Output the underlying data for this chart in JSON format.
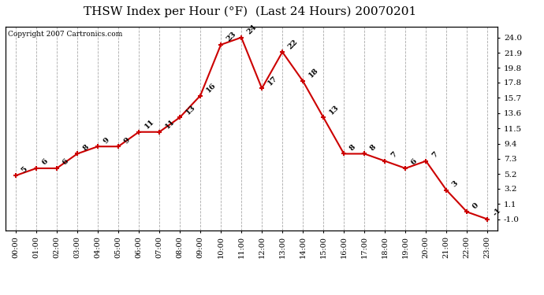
{
  "title": "THSW Index per Hour (°F)  (Last 24 Hours) 20070201",
  "copyright": "Copyright 2007 Cartronics.com",
  "hours": [
    "00:00",
    "01:00",
    "02:00",
    "03:00",
    "04:00",
    "05:00",
    "06:00",
    "07:00",
    "08:00",
    "09:00",
    "10:00",
    "11:00",
    "12:00",
    "13:00",
    "14:00",
    "15:00",
    "16:00",
    "17:00",
    "18:00",
    "19:00",
    "20:00",
    "21:00",
    "22:00",
    "23:00"
  ],
  "values": [
    5,
    6,
    6,
    8,
    9,
    9,
    11,
    11,
    13,
    16,
    23,
    24,
    17,
    22,
    18,
    13,
    8,
    8,
    7,
    6,
    7,
    3,
    0,
    -1
  ],
  "line_color": "#cc0000",
  "marker_color": "#cc0000",
  "bg_color": "#ffffff",
  "grid_color": "#aaaaaa",
  "title_fontsize": 11,
  "yticks_right": [
    24.0,
    21.9,
    19.8,
    17.8,
    15.7,
    13.6,
    11.5,
    9.4,
    7.3,
    5.2,
    3.2,
    1.1,
    -1.0
  ],
  "ylim": [
    -2.5,
    25.5
  ],
  "xlim": [
    -0.5,
    23.5
  ]
}
